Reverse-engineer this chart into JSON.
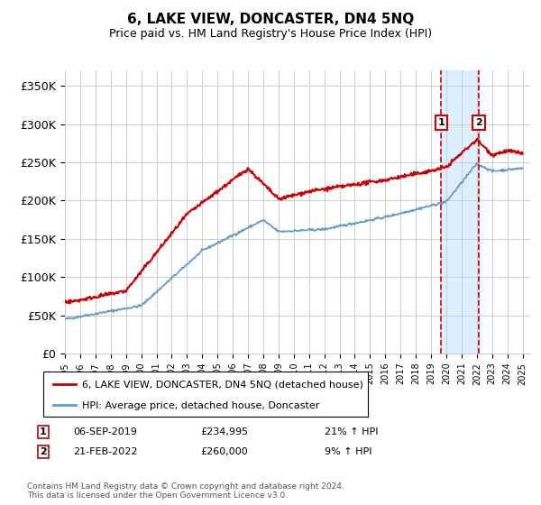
{
  "title": "6, LAKE VIEW, DONCASTER, DN4 5NQ",
  "subtitle": "Price paid vs. HM Land Registry's House Price Index (HPI)",
  "hpi_label": "HPI: Average price, detached house, Doncaster",
  "price_label": "6, LAKE VIEW, DONCASTER, DN4 5NQ (detached house)",
  "ylim": [
    0,
    370000
  ],
  "yticks": [
    0,
    50000,
    100000,
    150000,
    200000,
    250000,
    300000,
    350000
  ],
  "ytick_labels": [
    "£0",
    "£50K",
    "£100K",
    "£150K",
    "£200K",
    "£250K",
    "£300K",
    "£350K"
  ],
  "year_start": 1995,
  "year_end": 2025,
  "marker1_year": 2019.67,
  "marker1_price": 234995,
  "marker1_date": "06-SEP-2019",
  "marker1_pct": "21%",
  "marker2_year": 2022.13,
  "marker2_price": 260000,
  "marker2_date": "21-FEB-2022",
  "marker2_pct": "9%",
  "red_color": "#cc0000",
  "blue_color": "#6699cc",
  "highlight_color": "#ddeeff",
  "grid_color": "#cccccc",
  "footnote": "Contains HM Land Registry data © Crown copyright and database right 2024.\nThis data is licensed under the Open Government Licence v3.0."
}
